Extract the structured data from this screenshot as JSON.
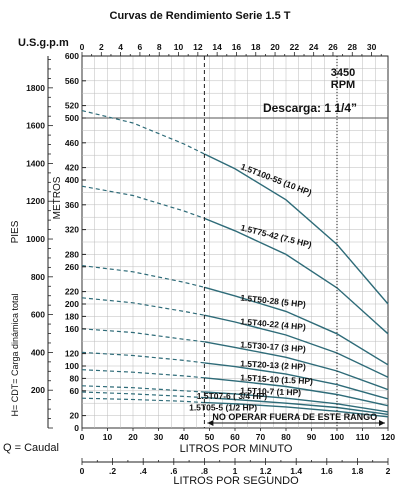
{
  "chart_data": {
    "type": "line",
    "title": "Curvas de Rendimiento Serie 1.5 T",
    "rpm_label": "3450\nRPM",
    "discharge_label": "Descarga: 1 1/4”",
    "top_axis": {
      "label": "U.S.g.p.m",
      "ticks": [
        0,
        2,
        4,
        6,
        8,
        10,
        12,
        14,
        16,
        18,
        20,
        22,
        24,
        26,
        28,
        30
      ]
    },
    "x_axis": {
      "label": "LITROS POR MINUTO",
      "ticks": [
        0,
        10,
        20,
        30,
        40,
        50,
        60,
        70,
        80,
        90,
        100,
        110,
        120
      ],
      "xlim": [
        0,
        120
      ]
    },
    "bottom_axis": {
      "label": "LITROS POR SEGUNDO",
      "tick_labels": [
        "0",
        ".2",
        ".4",
        ".6",
        ".8",
        "1",
        "1.2",
        "1.4",
        "1.6",
        "1.8",
        "2"
      ]
    },
    "y_left_axis": {
      "label": "PIES",
      "ticks": [
        200,
        400,
        600,
        800,
        1000,
        1200,
        1400,
        1600,
        1800
      ]
    },
    "y_right_axis": {
      "label": "METROS",
      "ticks": [
        20,
        60,
        80,
        100,
        120,
        160,
        180,
        200,
        220,
        260,
        280,
        320,
        360,
        400,
        420,
        460,
        500,
        520,
        560,
        600
      ],
      "ylim": [
        0,
        600
      ]
    },
    "side_label": "H= CDT= Carga dinámica total",
    "caudal_label": "Q = Caudal",
    "warning_label": "NO OPERAR FUERA DE ESTE RANGO",
    "operating_range_lpm": [
      48,
      120
    ],
    "series": [
      {
        "name": "1.5T100-55 (10 HP)",
        "x": [
          0,
          20,
          40,
          48,
          60,
          80,
          100,
          120
        ],
        "y": [
          512,
          492,
          458,
          442,
          418,
          368,
          296,
          200
        ]
      },
      {
        "name": "1.5T75-42 (7.5 HP)",
        "x": [
          0,
          20,
          40,
          48,
          60,
          80,
          100,
          120
        ],
        "y": [
          390,
          375,
          350,
          338,
          318,
          280,
          226,
          152
        ]
      },
      {
        "name": "1.5T50-28 (5 HP)",
        "x": [
          0,
          20,
          40,
          48,
          60,
          80,
          100,
          120
        ],
        "y": [
          262,
          252,
          235,
          227,
          213,
          188,
          152,
          102
        ]
      },
      {
        "name": "1.5T40-22 (4 HP)",
        "x": [
          0,
          20,
          40,
          48,
          60,
          80,
          100,
          120
        ],
        "y": [
          210,
          202,
          188,
          182,
          171,
          150,
          121,
          82
        ]
      },
      {
        "name": "1.5T30-17 (3 HP)",
        "x": [
          0,
          20,
          40,
          48,
          60,
          80,
          100,
          120
        ],
        "y": [
          160,
          154,
          143,
          139,
          130,
          114,
          92,
          62
        ]
      },
      {
        "name": "1.5T20-13 (2 HP)",
        "x": [
          0,
          20,
          40,
          48,
          60,
          80,
          100,
          120
        ],
        "y": [
          122,
          117,
          109,
          105,
          99,
          87,
          70,
          47
        ]
      },
      {
        "name": "1.5T15-10 (1.5 HP)",
        "x": [
          0,
          20,
          40,
          48,
          60,
          80,
          100,
          120
        ],
        "y": [
          94,
          90,
          84,
          81,
          76,
          67,
          54,
          36
        ]
      },
      {
        "name": "1.5T10-7 (1 HP)",
        "x": [
          0,
          20,
          40,
          48,
          60,
          80,
          100,
          120
        ],
        "y": [
          68,
          65,
          60,
          58,
          55,
          48,
          39,
          26
        ]
      },
      {
        "name": "1.5T07-6 ( 3/4 HP)",
        "x": [
          0,
          20,
          40,
          48,
          60,
          80,
          100,
          120
        ],
        "y": [
          58,
          55,
          51,
          49,
          46,
          40,
          33,
          22
        ]
      },
      {
        "name": "1.5T05-5 (1/2 HP)",
        "x": [
          0,
          20,
          40,
          48,
          60,
          80,
          100,
          120
        ],
        "y": [
          48,
          46,
          43,
          41,
          39,
          34,
          27,
          18
        ]
      }
    ],
    "grid": true
  }
}
